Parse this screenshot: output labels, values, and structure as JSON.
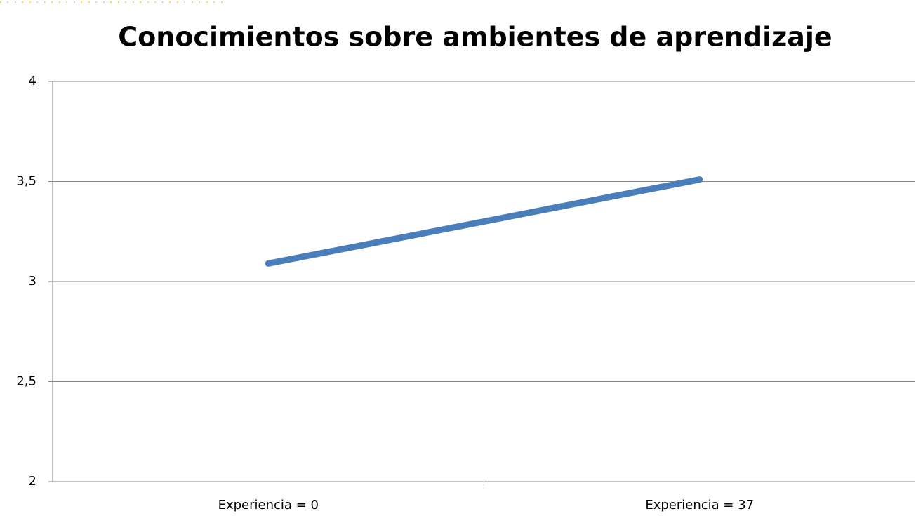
{
  "chart_data": {
    "type": "line",
    "title": "Conocimientos sobre ambientes de aprendizaje",
    "categories": [
      "Experiencia = 0",
      "Experiencia = 37"
    ],
    "series": [
      {
        "color": "#4a7ebb",
        "values": [
          3.09,
          3.51
        ]
      }
    ],
    "ylim": [
      2,
      4
    ],
    "yticks": [
      2,
      {
        "value": 2.5,
        "label": "2,5"
      },
      3,
      {
        "value": 3.5,
        "label": "3,5"
      },
      4
    ],
    "grid": true
  }
}
